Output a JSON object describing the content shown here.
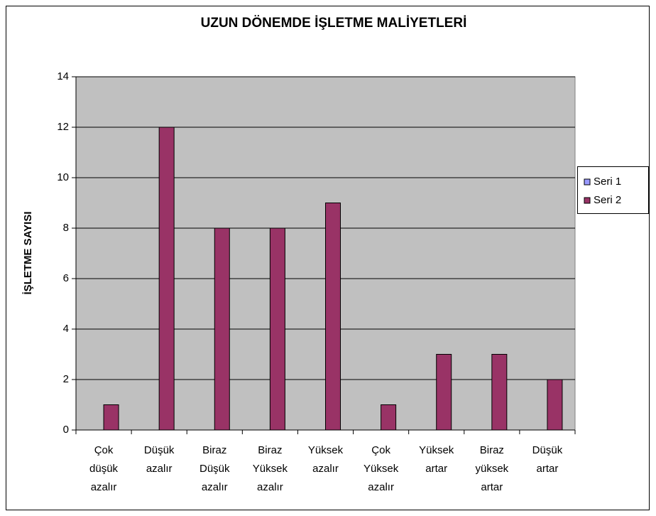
{
  "chart_data": {
    "type": "bar",
    "title": "UZUN DÖNEMDE İŞLETME MALİYETLERİ",
    "y_label": "İŞLETME SAYISI",
    "categories": [
      "Çok düşük azalır",
      "Düşük azalır",
      "Biraz Düşük azalır",
      "Biraz Yüksek azalır",
      "Yüksek azalır",
      "Çok Yüksek azalır",
      "Yüksek artar",
      "Biraz yüksek artar",
      "Düşük artar"
    ],
    "series": [
      {
        "name": "Seri 1",
        "color": "#9999ff",
        "values": [
          null,
          null,
          null,
          null,
          null,
          null,
          null,
          null,
          null
        ]
      },
      {
        "name": "Seri 2",
        "color": "#993366",
        "values": [
          1,
          12,
          8,
          8,
          9,
          1,
          3,
          3,
          2
        ]
      }
    ],
    "ylim": [
      0,
      14
    ],
    "yticks": [
      0,
      2,
      4,
      6,
      8,
      10,
      12,
      14
    ],
    "grid": true,
    "legend": "right",
    "plot_background": "#c0c0c0"
  }
}
